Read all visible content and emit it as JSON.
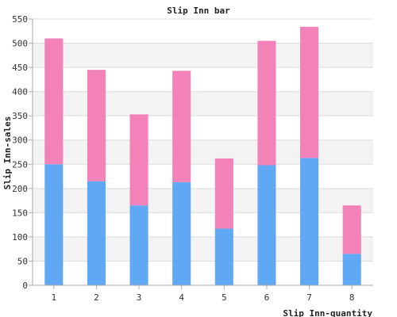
{
  "chart_data": {
    "type": "bar",
    "stacked": true,
    "title": "Slip Inn bar",
    "xlabel": "Slip Inn-quantity",
    "ylabel": "Slip Inn-sales",
    "categories": [
      "1",
      "2",
      "3",
      "4",
      "5",
      "6",
      "7",
      "8"
    ],
    "series": [
      {
        "values": [
          250,
          215,
          165,
          213,
          117,
          248,
          263,
          65
        ],
        "color": "#60a8f4"
      },
      {
        "values": [
          260,
          230,
          188,
          230,
          145,
          257,
          271,
          100
        ],
        "color": "#f282b8"
      }
    ],
    "ylim": [
      0,
      550
    ],
    "yticks": [
      0,
      50,
      100,
      150,
      200,
      250,
      300,
      350,
      400,
      450,
      500,
      550
    ],
    "grid": true,
    "grid_bands": true,
    "legend": "none"
  }
}
